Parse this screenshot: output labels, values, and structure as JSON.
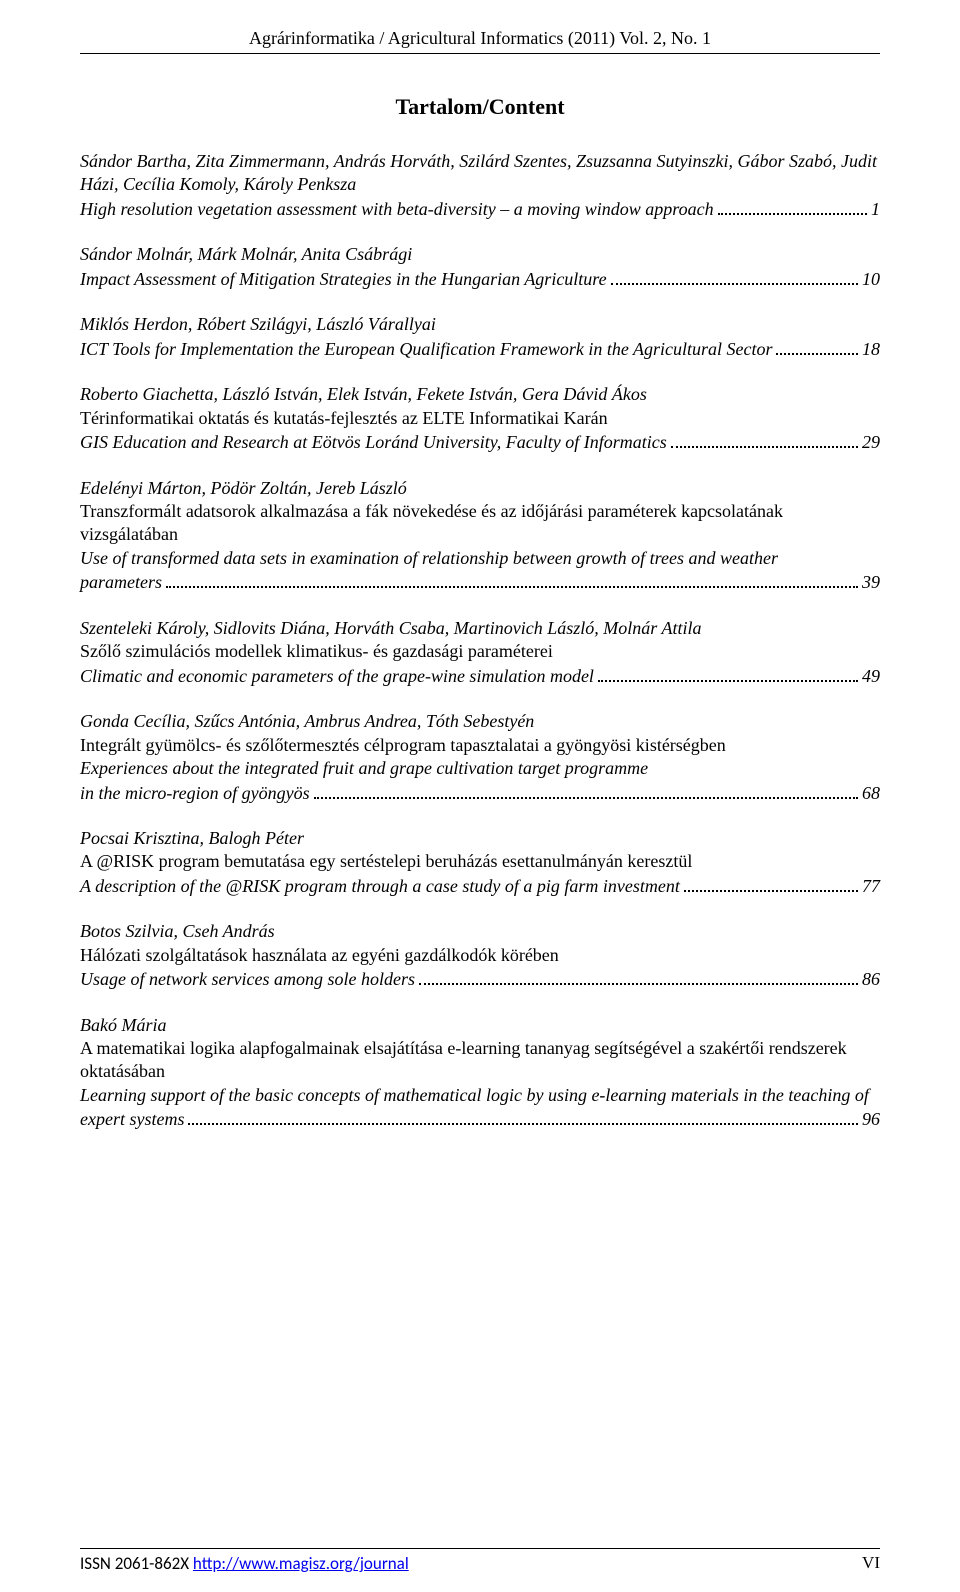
{
  "header": "Agrárinformatika / Agricultural Informatics (2011) Vol. 2, No. 1",
  "title": "Tartalom/Content",
  "entries": [
    {
      "authors": "Sándor Bartha, Zita Zimmermann, András Horváth, Szilárd Szentes, Zsuzsanna Sutyinszki, Gábor Szabó, Judit Házi, Cecília Komoly, Károly Penksza",
      "hu": "",
      "en_lead": "High resolution vegetation assessment with beta-diversity – a moving window approach",
      "page": "1"
    },
    {
      "authors": "Sándor Molnár, Márk Molnár, Anita Csábrági",
      "hu": "",
      "en_lead": "Impact Assessment of Mitigation Strategies in the Hungarian Agriculture",
      "page": "10"
    },
    {
      "authors": "Miklós Herdon, Róbert Szilágyi, László Várallyai",
      "hu": "",
      "en_lead": "ICT Tools for Implementation the European Qualification Framework in the Agricultural Sector",
      "page": "18"
    },
    {
      "authors": "Roberto Giachetta, László István, Elek István, Fekete István, Gera Dávid Ákos",
      "hu": "Térinformatikai oktatás és kutatás-fejlesztés az ELTE Informatikai Karán",
      "en_lead": "GIS Education and Research at Eötvös Loránd University, Faculty of Informatics",
      "page": "29"
    },
    {
      "authors": "Edelényi Márton, Pödör Zoltán, Jereb László",
      "hu": "Transzformált adatsorok alkalmazása a fák növekedése és az időjárási paraméterek kapcsolatának vizsgálatában",
      "en_pre": "Use of transformed data sets in examination of relationship between growth of trees and weather",
      "en_lead": "parameters",
      "page": "39"
    },
    {
      "authors": "Szenteleki Károly, Sidlovits Diána, Horváth Csaba, Martinovich László, Molnár Attila",
      "hu": "Szőlő szimulációs modellek klimatikus- és gazdasági paraméterei",
      "en_lead": "Climatic and economic parameters of the grape-wine simulation model",
      "page": "49"
    },
    {
      "authors": "Gonda Cecília, Szűcs Antónia, Ambrus Andrea, Tóth Sebestyén",
      "hu": "Integrált gyümölcs- és szőlőtermesztés célprogram tapasztalatai a gyöngyösi kistérségben",
      "en_pre": "Experiences about the integrated fruit and grape cultivation target programme",
      "en_lead": " in the micro-region of gyöngyös",
      "page": "68"
    },
    {
      "authors": "Pocsai Krisztina, Balogh Péter",
      "hu": "A @RISK program bemutatása egy sertéstelepi beruházás esettanulmányán keresztül",
      "en_lead": "A description of the @RISK program through a case study of a pig farm investment",
      "page": "77"
    },
    {
      "authors": "Botos Szilvia, Cseh András",
      "hu": "Hálózati szolgáltatások használata az egyéni gazdálkodók körében",
      "en_lead": "Usage of network services among sole holders",
      "page": "86"
    },
    {
      "authors": "Bakó Mária",
      "hu": "A matematikai logika alapfogalmainak elsajátítása e-learning tananyag segítségével a szakértői rendszerek oktatásában",
      "en_pre": "Learning support of the basic concepts of mathematical logic by using e-learning materials in the teaching of",
      "en_lead": "expert systems",
      "page": "96"
    }
  ],
  "footer": {
    "issn": "ISSN 2061-862X",
    "url": "http://www.magisz.org/journal",
    "pagenum": "VI"
  }
}
